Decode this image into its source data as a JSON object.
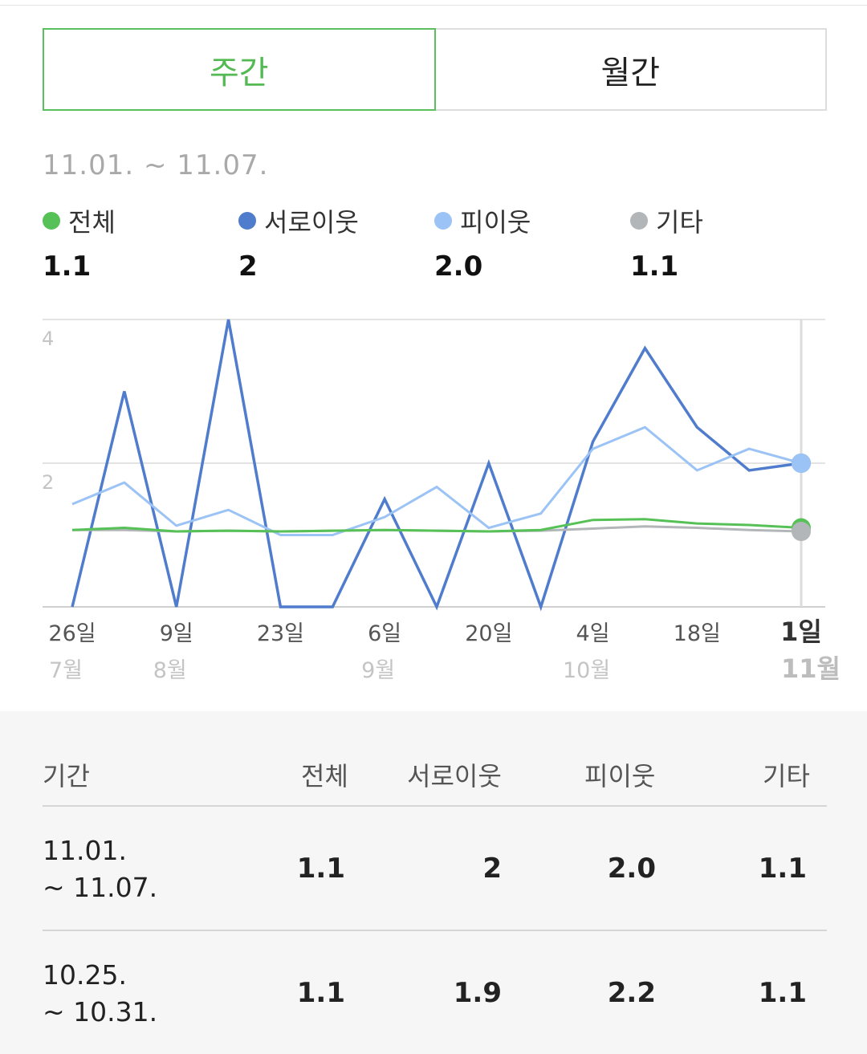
{
  "tabs": {
    "weekly": "주간",
    "monthly": "월간"
  },
  "range_label": "11.01. ~ 11.07.",
  "legend": [
    {
      "name": "전체",
      "value": "1.1",
      "color": "#56c156"
    },
    {
      "name": "서로이웃",
      "value": "2",
      "color": "#4f7ccc"
    },
    {
      "name": "피이웃",
      "value": "2.0",
      "color": "#9cc3f5"
    },
    {
      "name": "기타",
      "value": "1.1",
      "color": "#b3b6b8"
    }
  ],
  "chart_data": {
    "type": "line",
    "x": [
      "07-26",
      "08-02",
      "08-09",
      "08-16",
      "08-23",
      "08-30",
      "09-06",
      "09-13",
      "09-20",
      "09-27",
      "10-04",
      "10-11",
      "10-18",
      "10-25",
      "11-01"
    ],
    "ylim": [
      0,
      4
    ],
    "yticks": [
      "4",
      "2"
    ],
    "xtick_labels": [
      {
        "day": "26일",
        "month": "7월"
      },
      {
        "day": "9일",
        "month": "8월"
      },
      {
        "day": "23일",
        "month": ""
      },
      {
        "day": "6일",
        "month": "9월"
      },
      {
        "day": "20일",
        "month": ""
      },
      {
        "day": "4일",
        "month": "10월"
      },
      {
        "day": "18일",
        "month": ""
      },
      {
        "day": "1일",
        "month": "11월"
      }
    ],
    "series": [
      {
        "name": "전체",
        "color": "#56c156",
        "values": [
          1.07,
          1.1,
          1.05,
          1.06,
          1.05,
          1.06,
          1.07,
          1.06,
          1.05,
          1.07,
          1.21,
          1.22,
          1.16,
          1.14,
          1.1
        ]
      },
      {
        "name": "서로이웃",
        "color": "#4f7ccc",
        "values": [
          0,
          3.0,
          0,
          4.0,
          0,
          0,
          1.5,
          0,
          2.0,
          0,
          2.3,
          3.6,
          2.5,
          1.9,
          2.0
        ]
      },
      {
        "name": "피이웃",
        "color": "#9cc3f5",
        "values": [
          1.43,
          1.73,
          1.13,
          1.35,
          1.0,
          1.0,
          1.25,
          1.67,
          1.1,
          1.3,
          2.2,
          2.5,
          1.9,
          2.2,
          2.0
        ]
      },
      {
        "name": "기타",
        "color": "#b3b6b8",
        "values": [
          1.07,
          1.07,
          1.05,
          1.06,
          1.05,
          1.06,
          1.07,
          1.06,
          1.05,
          1.06,
          1.09,
          1.12,
          1.1,
          1.07,
          1.05
        ]
      }
    ]
  },
  "table": {
    "headers": [
      "기간",
      "전체",
      "서로이웃",
      "피이웃",
      "기타"
    ],
    "rows": [
      {
        "period_line1": "11.01.",
        "period_line2": "~ 11.07.",
        "total": "1.1",
        "mutual": "2",
        "follower": "2.0",
        "other": "1.1"
      },
      {
        "period_line1": "10.25.",
        "period_line2": "~ 10.31.",
        "total": "1.1",
        "mutual": "1.9",
        "follower": "2.2",
        "other": "1.1"
      }
    ]
  }
}
